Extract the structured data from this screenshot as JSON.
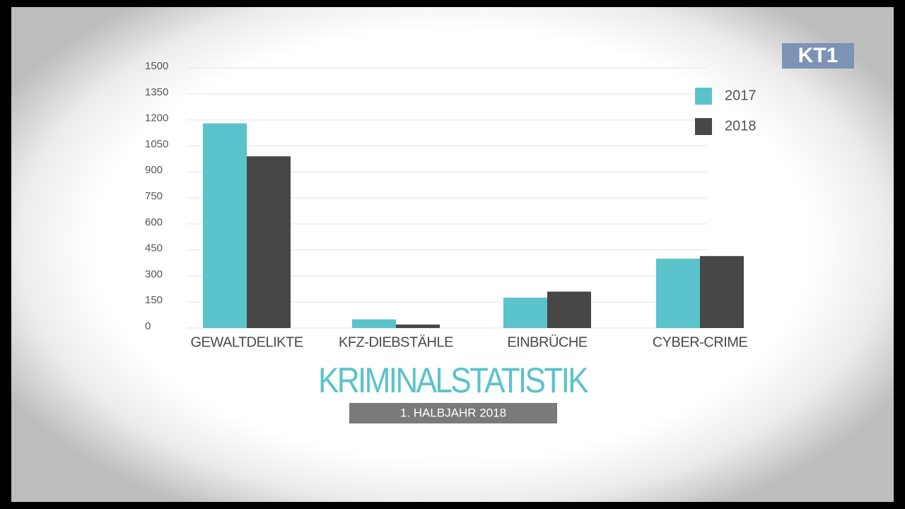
{
  "chart_data": {
    "type": "bar",
    "title": "KRIMINALSTATISTIK",
    "subtitle": "1. HALBJAHR 2018",
    "logo": "KT1",
    "categories": [
      "GEWALTDELIKTE",
      "KFZ-DIEBSTÄHLE",
      "EINBRÜCHE",
      "CYBER-CRIME"
    ],
    "series": [
      {
        "name": "2017",
        "color": "#5bc3cb",
        "values": [
          1180,
          50,
          175,
          400
        ]
      },
      {
        "name": "2018",
        "color": "#474747",
        "values": [
          990,
          20,
          210,
          415
        ]
      }
    ],
    "ylim": [
      0,
      1500
    ],
    "yticks": [
      0,
      150,
      300,
      450,
      600,
      750,
      900,
      1050,
      1200,
      1350,
      1500
    ],
    "grid": true,
    "legend": "top-right"
  }
}
